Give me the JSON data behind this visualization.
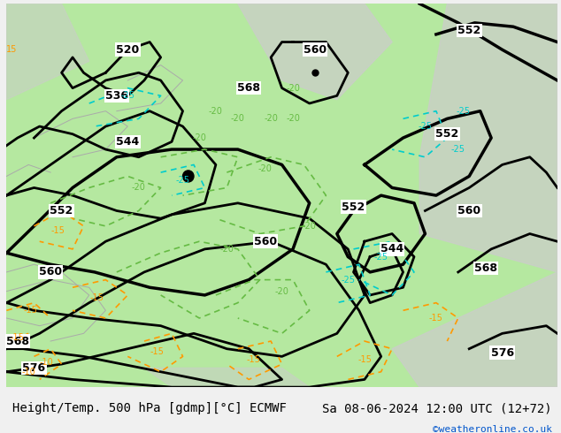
{
  "title_left": "Height/Temp. 500 hPa [gdmp][°C] ECMWF",
  "title_right": "Sa 08-06-2024 12:00 UTC (12+72)",
  "credit": "©weatheronline.co.uk",
  "bg_color": "#f0f0f0",
  "map_bg_green": "#b5e8a0",
  "map_bg_white": "#f0f0f0",
  "contour_color_black": "#000000",
  "contour_color_green": "#66bb44",
  "contour_color_teal": "#00cccc",
  "contour_color_orange": "#ff9900",
  "contour_color_gray": "#aaaaaa",
  "label_fontsize": 9,
  "title_fontsize": 10,
  "credit_fontsize": 8,
  "credit_color": "#0055cc",
  "fig_width": 6.34,
  "fig_height": 4.9
}
